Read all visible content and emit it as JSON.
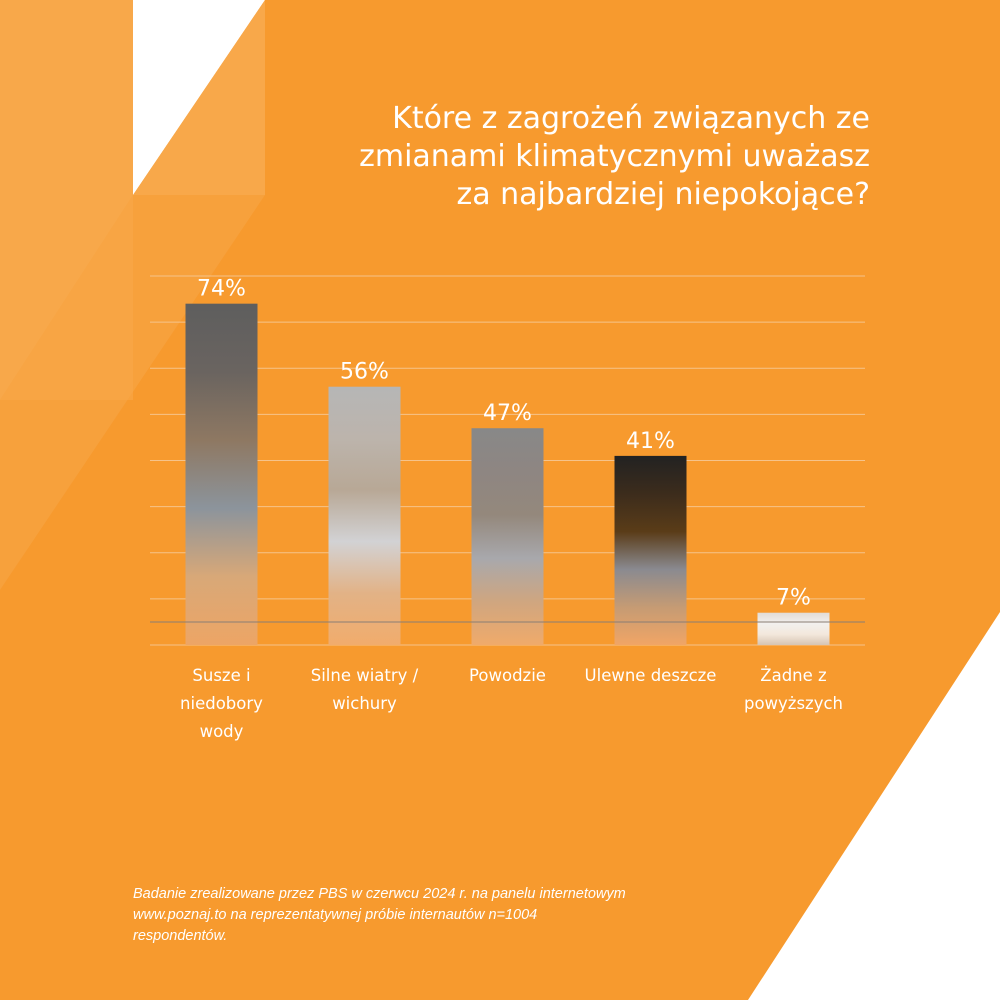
{
  "title_lines": [
    "Które z zagrożeń związanych ze",
    "zmianami klimatycznymi uważasz",
    "za najbardziej  niepokojące?"
  ],
  "colors": {
    "background": "#F79A2E",
    "triangle_light": "#F8A84A",
    "white": "#FFFFFF",
    "gridline": "#F6C38A",
    "text": "#FFFFFF"
  },
  "chart_data": {
    "type": "bar",
    "categories": [
      [
        "Susze i",
        "niedobory",
        "wody"
      ],
      [
        "Silne wiatry /",
        "wichury"
      ],
      [
        "Powodzie"
      ],
      [
        "Ulewne deszcze"
      ],
      [
        "Żadne z",
        "powyższych"
      ]
    ],
    "values": [
      74,
      56,
      47,
      41,
      7
    ],
    "data_labels": [
      "74%",
      "56%",
      "47%",
      "41%",
      "7%"
    ],
    "ylim": [
      0,
      80
    ],
    "grid": true,
    "gridline_step": 10,
    "unit": "%",
    "bar_gradients": [
      [
        "#5E5E5E",
        "#6A6460",
        "#8E7862",
        "#8C949C",
        "#D8A878",
        "#EDA565"
      ],
      [
        "#B6B6B6",
        "#BCB4AC",
        "#B8A896",
        "#D2D2D4",
        "#E2B286",
        "#F1AC6C"
      ],
      [
        "#888888",
        "#8E8682",
        "#94887C",
        "#A8A8AC",
        "#CFA680",
        "#F0AA6A"
      ],
      [
        "#222222",
        "#3C2C1C",
        "#5A3C18",
        "#8A8A90",
        "#C59B74",
        "#F1A565"
      ],
      [
        "#E2DCD6",
        "#F2F0EE",
        "#F3E8DC",
        "#D6C4B2"
      ]
    ]
  },
  "footnote_lines": [
    "Badanie zrealizowane przez PBS w czerwcu 2024 r. na panelu internetowym",
    "www.poznaj.to na reprezentatywnej próbie internautów n=1004",
    "respondentów."
  ]
}
